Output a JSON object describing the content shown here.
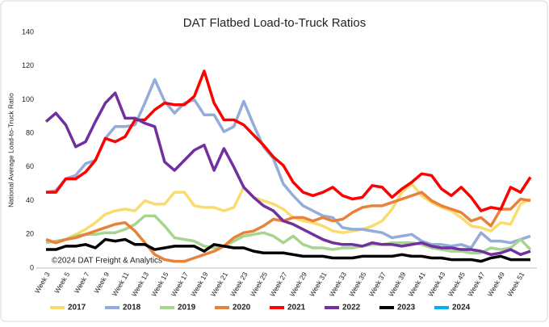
{
  "chart_data": {
    "type": "line",
    "title": "DAT Flatbed Load-to-Truck Ratios",
    "y_label": "National Average Load-to-Truck Ratio",
    "annotation": "©2024 DAT Freight & Analytics",
    "categories": [
      "Week 3",
      null,
      "Week 5",
      null,
      "Week 7",
      null,
      "Week 9",
      null,
      "Week 11",
      null,
      "Week 13",
      null,
      "Week 15",
      null,
      "Week 17",
      null,
      "Week 19",
      null,
      "Week 21",
      null,
      "Week 23",
      null,
      "Week 25",
      null,
      "Week 27",
      null,
      "Week 29",
      null,
      "Week 31",
      null,
      "Week 33",
      null,
      "Week 35",
      null,
      "Week 37",
      null,
      "Week 39",
      null,
      "Week 41",
      null,
      "Week 43",
      null,
      "Week 45",
      null,
      "Week 47",
      null,
      "Week 49",
      null,
      "Week 51",
      null
    ],
    "ylim": [
      0,
      140
    ],
    "yticks": [
      0,
      20,
      40,
      60,
      80,
      100,
      120,
      140
    ],
    "grid": false,
    "legend": "bottom",
    "series": [
      {
        "name": "2017",
        "color": "#f9dc6c",
        "values": [
          16,
          15,
          17,
          20,
          23,
          27,
          32,
          34,
          35,
          34,
          40,
          38,
          38,
          45,
          45,
          37,
          36,
          36,
          34,
          36,
          48,
          42,
          40,
          38,
          35,
          30,
          28,
          27,
          25,
          22,
          21,
          22,
          23,
          25,
          28,
          35,
          45,
          50,
          43,
          39,
          36,
          34,
          30,
          25,
          24,
          22,
          27,
          26,
          38,
          41
        ]
      },
      {
        "name": "2018",
        "color": "#93acd9",
        "values": [
          45,
          46,
          53,
          55,
          62,
          64,
          77,
          84,
          84,
          85,
          98,
          112,
          99,
          92,
          98,
          100,
          91,
          91,
          81,
          84,
          99,
          85,
          72,
          65,
          50,
          43,
          37,
          34,
          31,
          30,
          24,
          23,
          23,
          22,
          21,
          18,
          19,
          20,
          16,
          14,
          14,
          13,
          14,
          12,
          21,
          16,
          16,
          15,
          17,
          19
        ]
      },
      {
        "name": "2019",
        "color": "#a6d58d",
        "values": [
          15,
          16,
          17,
          19,
          20,
          20,
          21,
          21,
          23,
          26,
          31,
          31,
          25,
          18,
          17,
          16,
          13,
          12,
          13,
          16,
          19,
          20,
          21,
          19,
          15,
          19,
          14,
          12,
          12,
          11,
          12,
          12,
          13,
          14,
          14,
          15,
          15,
          15,
          14,
          12,
          11,
          10,
          10,
          9,
          9,
          12,
          11,
          12,
          17,
          11
        ]
      },
      {
        "name": "2020",
        "color": "#e8823a",
        "values": [
          17,
          15,
          17,
          18,
          20,
          22,
          24,
          26,
          27,
          22,
          15,
          8,
          5,
          4,
          4,
          6,
          8,
          10,
          13,
          18,
          21,
          22,
          25,
          29,
          28,
          30,
          30,
          28,
          30,
          28,
          29,
          33,
          36,
          37,
          37,
          39,
          41,
          43,
          45,
          40,
          37,
          35,
          33,
          28,
          30,
          25,
          35,
          35,
          41,
          40
        ]
      },
      {
        "name": "2021",
        "color": "#ff0000",
        "values": [
          45,
          45,
          53,
          53,
          57,
          64,
          77,
          75,
          78,
          88,
          88,
          94,
          98,
          97,
          97,
          102,
          117,
          98,
          88,
          88,
          85,
          79,
          73,
          66,
          61,
          51,
          45,
          43,
          45,
          48,
          43,
          41,
          42,
          49,
          48,
          42,
          47,
          51,
          56,
          55,
          47,
          43,
          48,
          42,
          34,
          36,
          35,
          48,
          45,
          54
        ]
      },
      {
        "name": "2022",
        "color": "#7030a0",
        "values": [
          87,
          92,
          85,
          72,
          75,
          87,
          98,
          104,
          89,
          89,
          86,
          84,
          63,
          58,
          64,
          70,
          73,
          58,
          71,
          60,
          48,
          42,
          37,
          34,
          28,
          26,
          23,
          20,
          17,
          15,
          14,
          14,
          13,
          15,
          14,
          14,
          13,
          14,
          15,
          13,
          12,
          12,
          11,
          11,
          10,
          8,
          9,
          11,
          8,
          10
        ]
      },
      {
        "name": "2023",
        "color": "#000000",
        "values": [
          11,
          11,
          13,
          13,
          14,
          12,
          17,
          16,
          17,
          14,
          14,
          11,
          12,
          13,
          13,
          13,
          10,
          14,
          13,
          12,
          12,
          10,
          9,
          9,
          9,
          8,
          7,
          7,
          7,
          6,
          6,
          6,
          7,
          7,
          7,
          7,
          8,
          7,
          7,
          6,
          6,
          5,
          5,
          5,
          4,
          6,
          7,
          5,
          5,
          5
        ]
      },
      {
        "name": "2024",
        "color": "#00b0f0",
        "values": [
          null,
          null,
          null,
          null,
          null,
          null,
          null,
          null,
          null,
          null,
          null,
          null,
          null,
          null,
          null,
          null,
          null,
          null,
          null,
          null,
          null,
          null,
          null,
          null,
          null,
          null,
          null,
          null,
          null,
          null,
          null,
          null,
          null,
          null,
          null,
          null,
          null,
          null,
          null,
          null,
          null,
          null,
          null,
          null,
          null,
          null,
          null,
          null,
          null,
          null
        ]
      }
    ]
  }
}
